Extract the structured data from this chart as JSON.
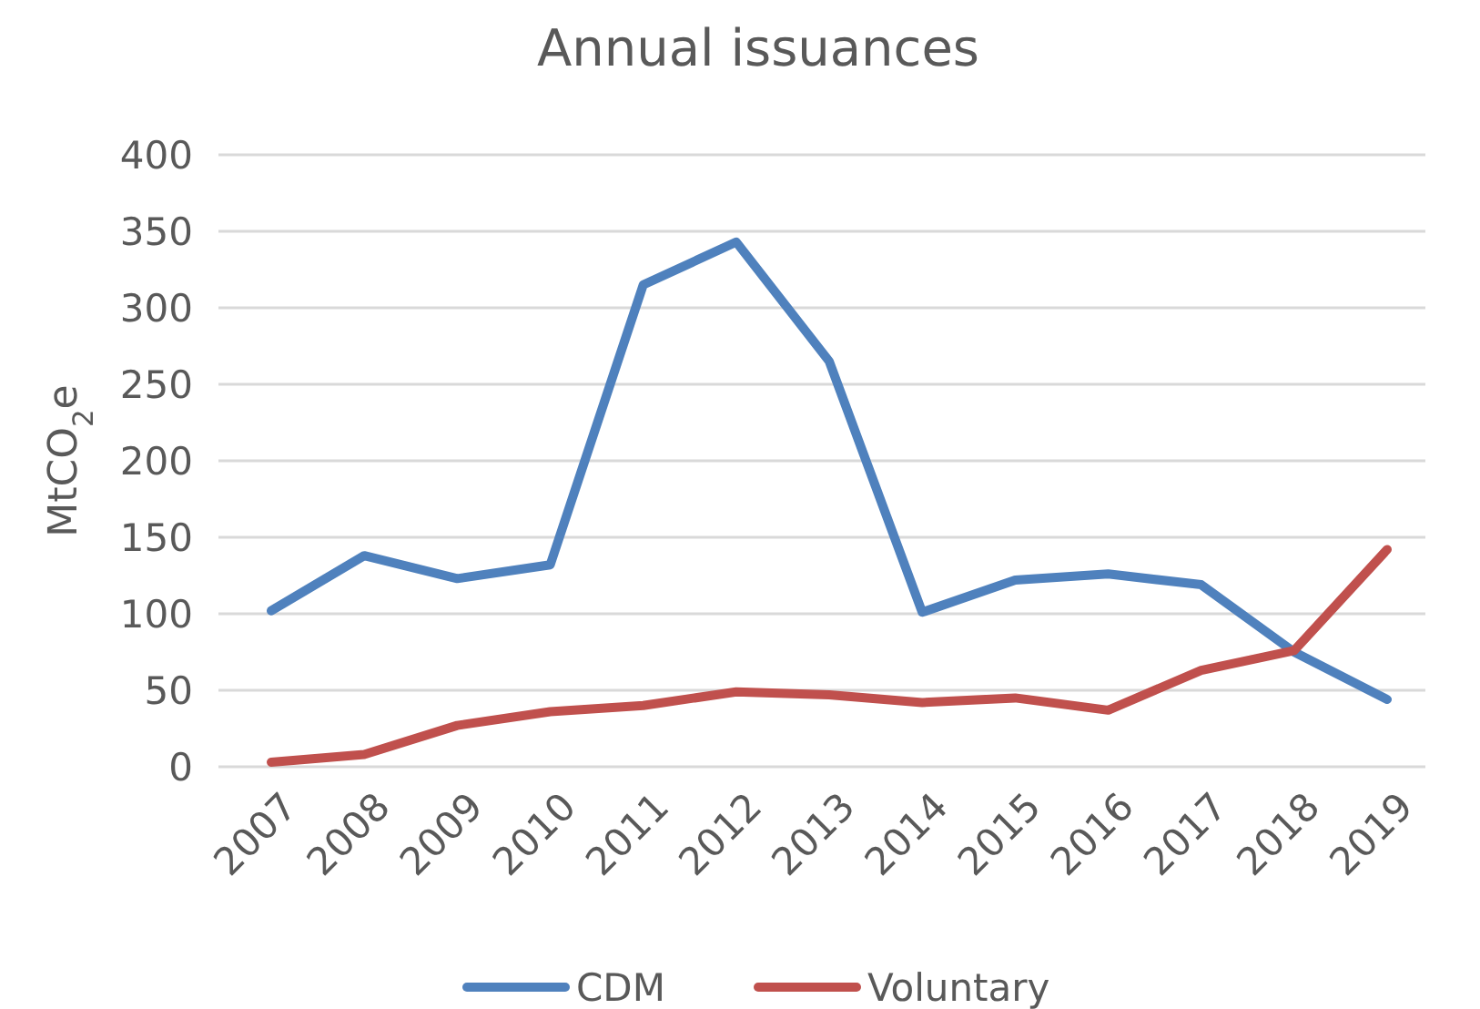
{
  "chart_data": {
    "type": "line",
    "title": "Annual issuances",
    "ylabel": "MtCO$_{2}$e",
    "categories": [
      "2007",
      "2008",
      "2009",
      "2010",
      "2011",
      "2012",
      "2013",
      "2014",
      "2015",
      "2016",
      "2017",
      "2018",
      "2019"
    ],
    "series": [
      {
        "name": "CDM",
        "color": "#4f81bd",
        "values": [
          102,
          138,
          123,
          132,
          315,
          343,
          265,
          101,
          122,
          126,
          119,
          75,
          44
        ]
      },
      {
        "name": "Voluntary",
        "color": "#c0504d",
        "values": [
          3,
          8,
          27,
          36,
          40,
          49,
          47,
          42,
          45,
          37,
          63,
          76,
          142
        ]
      }
    ],
    "ylim": [
      0,
      400
    ],
    "yticks": [
      0,
      50,
      100,
      150,
      200,
      250,
      300,
      350,
      400
    ],
    "grid": "y",
    "legend": "bottom",
    "marker": "none",
    "line_style": "solid"
  }
}
